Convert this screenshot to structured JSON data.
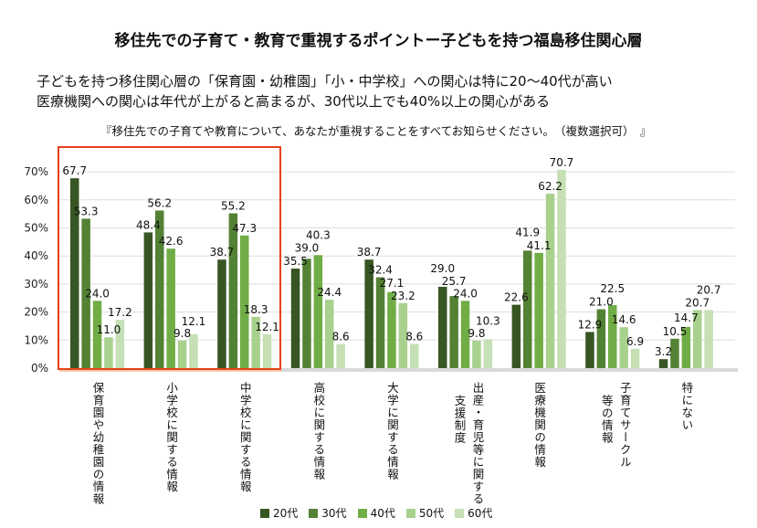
{
  "title": "移住先での子育て・教育で重視するポイントー子どもを持つ福島移住関心層",
  "subtitle_lines": [
    "子どもを持つ移住関心層の「保育園・幼稚園」「小・中学校」への関心は特に20～40代が高い",
    "医療機関への関心は年代が上がると高まるが、30代以上でも40%以上の関心がある"
  ],
  "question": "『移住先での子育てや教育について、あなたが重視することをすべてお知らせください。　（複数選択可）　』",
  "chart_data": {
    "type": "bar",
    "ylim": [
      0,
      70
    ],
    "yticks": [
      "0%",
      "10%",
      "20%",
      "30%",
      "40%",
      "50%",
      "60%",
      "70%"
    ],
    "grid": true,
    "legend_position": "bottom",
    "categories": [
      [
        "保育園や幼稚園の情報"
      ],
      [
        "小学校に関する情報"
      ],
      [
        "中学校に関する情報"
      ],
      [
        "高校に関する情報"
      ],
      [
        "大学に関する情報"
      ],
      [
        "出産・育児等に関する",
        "支援制度"
      ],
      [
        "医療機関の情報"
      ],
      [
        "子育てサークル",
        "等の情報"
      ],
      [
        "特にない"
      ]
    ],
    "series": [
      {
        "name": "20代",
        "color": "#375623",
        "values": [
          67.7,
          48.4,
          38.7,
          35.5,
          38.7,
          29.0,
          22.6,
          12.9,
          3.2
        ]
      },
      {
        "name": "30代",
        "color": "#548235",
        "values": [
          53.3,
          56.2,
          55.2,
          39.0,
          32.4,
          25.7,
          41.9,
          21.0,
          10.5
        ]
      },
      {
        "name": "40代",
        "color": "#70ad47",
        "values": [
          24.0,
          42.6,
          47.3,
          40.3,
          27.1,
          24.0,
          41.1,
          22.5,
          14.7
        ]
      },
      {
        "name": "50代",
        "color": "#a9d18e",
        "values": [
          11.0,
          9.8,
          18.3,
          24.4,
          23.2,
          9.8,
          62.2,
          14.6,
          20.7
        ]
      },
      {
        "name": "60代",
        "color": "#c5e0b4",
        "values": [
          17.2,
          12.1,
          12.1,
          8.6,
          8.6,
          10.3,
          70.7,
          6.9,
          20.7
        ]
      }
    ],
    "highlight_color": "#e8401c"
  }
}
